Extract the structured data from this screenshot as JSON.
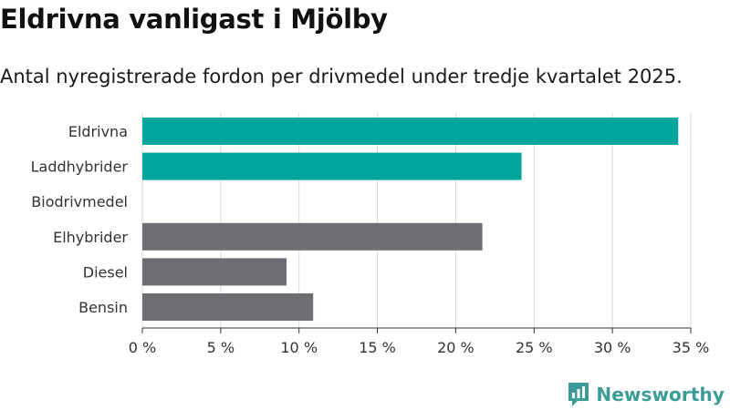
{
  "header": {
    "title": "Eldrivna vanligast i Mjölby",
    "subtitle": "Antal nyregistrerade fordon per drivmedel under tredje kvartalet 2025."
  },
  "brand": {
    "name": "Newsworthy",
    "icon": "newsworthy-logo-icon",
    "color": "#3a9b97"
  },
  "colors": {
    "highlight": "#00a59b",
    "other": "#6e6d73",
    "grid": "#d9d9d9"
  },
  "chart_data": {
    "type": "bar",
    "orientation": "horizontal",
    "title": "Eldrivna vanligast i Mjölby",
    "subtitle": "Antal nyregistrerade fordon per drivmedel under tredje kvartalet 2025.",
    "categories": [
      "Eldrivna",
      "Laddhybrider",
      "Biodrivmedel",
      "Elhybrider",
      "Diesel",
      "Bensin"
    ],
    "values": [
      34.2,
      24.2,
      0,
      21.7,
      9.2,
      10.9
    ],
    "highlighted": [
      true,
      true,
      true,
      false,
      false,
      false
    ],
    "xlim": [
      0,
      35
    ],
    "xticks": [
      0,
      5,
      10,
      15,
      20,
      25,
      30,
      35
    ],
    "xtick_labels": [
      "0 %",
      "5 %",
      "10 %",
      "15 %",
      "20 %",
      "25 %",
      "30 %",
      "35 %"
    ],
    "xlabel": "",
    "ylabel": "",
    "grid": true,
    "legend": "none"
  }
}
